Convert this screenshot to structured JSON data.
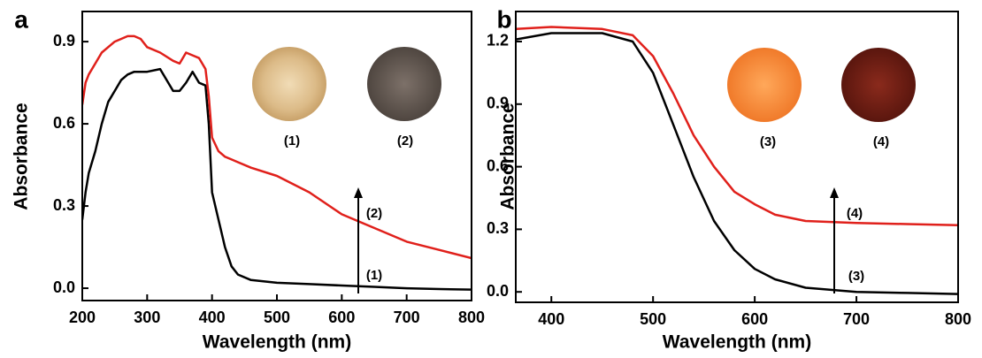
{
  "chart_data": [
    {
      "type": "line",
      "panel_label": "a",
      "xlabel": "Wavelength (nm)",
      "ylabel": "Absorbance",
      "xlim": [
        200,
        800
      ],
      "ylim": [
        -0.045,
        1.01
      ],
      "xticks": [
        200,
        300,
        400,
        500,
        600,
        700,
        800
      ],
      "yticks": [
        {
          "value": 0,
          "label": "0.0"
        },
        0.3,
        0.6,
        0.9
      ],
      "x": [
        200,
        205,
        210,
        220,
        230,
        240,
        250,
        260,
        270,
        280,
        290,
        300,
        320,
        340,
        350,
        360,
        370,
        380,
        390,
        395,
        400,
        410,
        420,
        430,
        440,
        460,
        500,
        550,
        600,
        650,
        700,
        750,
        800
      ],
      "series": [
        {
          "name": "(1)",
          "color": "#000000",
          "values": [
            0.25,
            0.35,
            0.42,
            0.5,
            0.6,
            0.68,
            0.72,
            0.76,
            0.78,
            0.79,
            0.79,
            0.79,
            0.8,
            0.72,
            0.72,
            0.75,
            0.79,
            0.75,
            0.74,
            0.6,
            0.35,
            0.25,
            0.15,
            0.08,
            0.05,
            0.03,
            0.02,
            0.015,
            0.01,
            0.005,
            0.0,
            -0.003,
            -0.005
          ]
        },
        {
          "name": "(2)",
          "color": "#e0201b",
          "values": [
            0.67,
            0.75,
            0.78,
            0.82,
            0.86,
            0.88,
            0.9,
            0.91,
            0.92,
            0.92,
            0.91,
            0.88,
            0.86,
            0.83,
            0.82,
            0.86,
            0.85,
            0.84,
            0.8,
            0.7,
            0.55,
            0.5,
            0.48,
            0.47,
            0.46,
            0.44,
            0.41,
            0.35,
            0.27,
            0.22,
            0.17,
            0.14,
            0.11
          ]
        }
      ],
      "annotations": [
        "(1)",
        "(2)"
      ]
    },
    {
      "type": "line",
      "panel_label": "b",
      "xlabel": "Wavelength (nm)",
      "ylabel": "Absorbance",
      "xlim": [
        365,
        800
      ],
      "ylim": [
        -0.05,
        1.344
      ],
      "xticks": [
        400,
        500,
        600,
        700,
        800
      ],
      "yticks": [
        {
          "value": 0,
          "label": "0.0"
        },
        0.3,
        0.6,
        0.9,
        1.2
      ],
      "x": [
        365,
        400,
        450,
        480,
        500,
        520,
        540,
        560,
        580,
        600,
        620,
        650,
        700,
        750,
        800
      ],
      "series": [
        {
          "name": "(3)",
          "color": "#000000",
          "values": [
            1.21,
            1.24,
            1.24,
            1.2,
            1.05,
            0.8,
            0.55,
            0.34,
            0.2,
            0.11,
            0.06,
            0.02,
            0.0,
            -0.005,
            -0.01
          ]
        },
        {
          "name": "(4)",
          "color": "#e0201b",
          "values": [
            1.26,
            1.27,
            1.26,
            1.23,
            1.13,
            0.95,
            0.75,
            0.6,
            0.48,
            0.42,
            0.37,
            0.34,
            0.33,
            0.325,
            0.32
          ]
        }
      ],
      "annotations": [
        "(3)",
        "(4)"
      ]
    }
  ]
}
